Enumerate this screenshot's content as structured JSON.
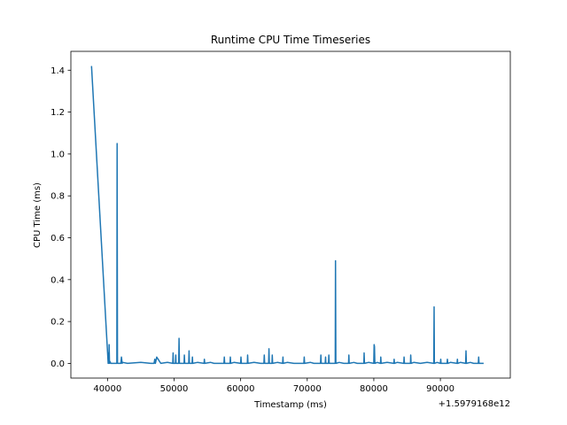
{
  "chart_data": {
    "type": "line",
    "title": "Runtime CPU Time Timeseries",
    "xlabel": "Timestamp (ms)",
    "ylabel": "CPU Time (ms)",
    "x_offset_label": "+1.5979168e12",
    "xlim": [
      34500,
      100500
    ],
    "ylim": [
      -0.07,
      1.49
    ],
    "xticks": [
      40000,
      50000,
      60000,
      70000,
      80000,
      90000
    ],
    "xtick_labels": [
      "40000",
      "50000",
      "60000",
      "70000",
      "80000",
      "90000"
    ],
    "yticks": [
      0.0,
      0.2,
      0.4,
      0.6,
      0.8,
      1.0,
      1.2,
      1.4
    ],
    "ytick_labels": [
      "0.0",
      "0.2",
      "0.4",
      "0.6",
      "0.8",
      "1.0",
      "1.2",
      "1.4"
    ],
    "grid": false,
    "series": [
      {
        "color": "#1f77b4",
        "x": [
          37600,
          40100,
          40150,
          40200,
          40250,
          40300,
          40350,
          40500,
          41400,
          41450,
          41500,
          41550,
          42000,
          42100,
          42200,
          42300,
          43000,
          45000,
          46500,
          47000,
          47100,
          47200,
          47400,
          48000,
          49000,
          49800,
          49850,
          49900,
          50200,
          50250,
          50300,
          50700,
          50750,
          50800,
          51500,
          51550,
          51600,
          52200,
          52250,
          52300,
          52700,
          52750,
          52800,
          53500,
          54500,
          54550,
          54600,
          55500,
          56000,
          57500,
          57550,
          57600,
          58400,
          58450,
          58500,
          59000,
          60000,
          60050,
          60100,
          61000,
          61050,
          61100,
          62000,
          63000,
          63500,
          63550,
          63600,
          64200,
          64250,
          64300,
          64700,
          64750,
          64800,
          65500,
          66300,
          66350,
          66400,
          67000,
          68000,
          69500,
          69550,
          69600,
          70500,
          71000,
          72000,
          72050,
          72100,
          72700,
          72750,
          72800,
          73200,
          73250,
          73300,
          74200,
          74250,
          74300,
          74800,
          75500,
          76200,
          76250,
          76300,
          77000,
          77500,
          78500,
          78550,
          78600,
          79200,
          80000,
          80050,
          80100,
          80150,
          80500,
          81000,
          81050,
          81100,
          82000,
          83000,
          83050,
          83100,
          83500,
          84500,
          84550,
          84600,
          85500,
          85550,
          85600,
          86000,
          87000,
          88000,
          89000,
          89050,
          89100,
          89500,
          90000,
          90050,
          90100,
          91000,
          91050,
          91100,
          91500,
          92500,
          92550,
          92600,
          93000,
          93800,
          93850,
          93900,
          94500,
          95000,
          95700,
          95750,
          95800,
          96500
        ],
        "y": [
          1.42,
          0.0,
          0.05,
          0.0,
          0.09,
          0.0,
          0.01,
          0.0,
          0.0,
          1.05,
          0.0,
          0.0,
          0.0,
          0.03,
          0.0,
          0.005,
          0.0,
          0.005,
          0.0,
          0.0,
          0.02,
          0.0,
          0.03,
          0.0,
          0.005,
          0.0,
          0.05,
          0.0,
          0.0,
          0.04,
          0.0,
          0.0,
          0.12,
          0.0,
          0.0,
          0.04,
          0.0,
          0.0,
          0.06,
          0.0,
          0.0,
          0.03,
          0.0,
          0.005,
          0.0,
          0.02,
          0.0,
          0.005,
          0.0,
          0.0,
          0.03,
          0.0,
          0.0,
          0.03,
          0.0,
          0.005,
          0.0,
          0.03,
          0.0,
          0.0,
          0.04,
          0.0,
          0.005,
          0.0,
          0.0,
          0.04,
          0.0,
          0.0,
          0.07,
          0.0,
          0.0,
          0.04,
          0.0,
          0.005,
          0.0,
          0.03,
          0.0,
          0.005,
          0.0,
          0.0,
          0.03,
          0.0,
          0.005,
          0.0,
          0.0,
          0.04,
          0.0,
          0.0,
          0.03,
          0.0,
          0.0,
          0.04,
          0.0,
          0.0,
          0.49,
          0.0,
          0.005,
          0.0,
          0.0,
          0.04,
          0.0,
          0.005,
          0.0,
          0.0,
          0.05,
          0.0,
          0.005,
          0.0,
          0.09,
          0.08,
          0.0,
          0.005,
          0.0,
          0.03,
          0.0,
          0.005,
          0.0,
          0.02,
          0.0,
          0.005,
          0.0,
          0.03,
          0.0,
          0.0,
          0.04,
          0.0,
          0.005,
          0.0,
          0.005,
          0.0,
          0.27,
          0.0,
          0.005,
          0.0,
          0.02,
          0.0,
          0.0,
          0.02,
          0.0,
          0.005,
          0.0,
          0.02,
          0.0,
          0.005,
          0.0,
          0.06,
          0.0,
          0.005,
          0.0,
          0.0,
          0.03,
          0.0,
          0.0
        ]
      }
    ]
  }
}
